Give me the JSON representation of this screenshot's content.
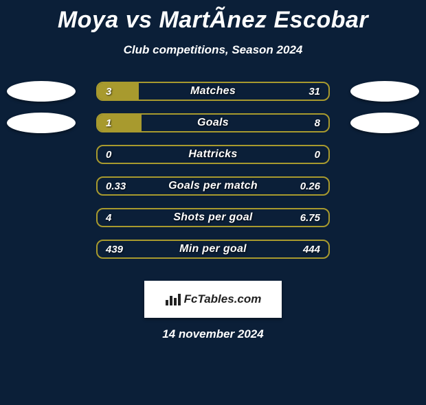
{
  "title": "Moya vs MartÃ­nez Escobar",
  "subtitle": "Club competitions, Season 2024",
  "date": "14 november 2024",
  "logo_text": "FcTables.com",
  "colors": {
    "background": "#0b1f38",
    "fill": "#a89a2e",
    "border": "#a89a2e",
    "ellipse": "#ffffff",
    "text": "#ffffff"
  },
  "rows": [
    {
      "label": "Matches",
      "left_val": "3",
      "right_val": "31",
      "show_ellipses": true,
      "fill_pct": 18
    },
    {
      "label": "Goals",
      "left_val": "1",
      "right_val": "8",
      "show_ellipses": true,
      "fill_pct": 19
    },
    {
      "label": "Hattricks",
      "left_val": "0",
      "right_val": "0",
      "show_ellipses": false,
      "fill_pct": 0
    },
    {
      "label": "Goals per match",
      "left_val": "0.33",
      "right_val": "0.26",
      "show_ellipses": false,
      "fill_pct": 0
    },
    {
      "label": "Shots per goal",
      "left_val": "4",
      "right_val": "6.75",
      "show_ellipses": false,
      "fill_pct": 0
    },
    {
      "label": "Min per goal",
      "left_val": "439",
      "right_val": "444",
      "show_ellipses": false,
      "fill_pct": 0
    }
  ]
}
